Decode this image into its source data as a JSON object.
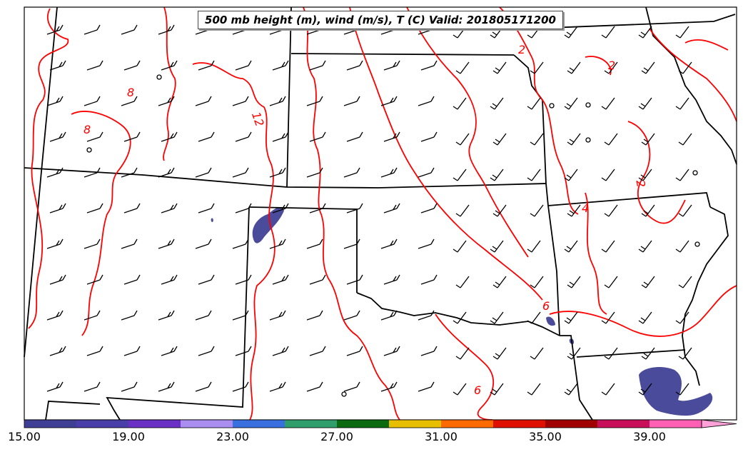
{
  "title": "500 mb height (m), wind (m/s), T (C) Valid: 201805171200",
  "colorbar": {
    "tick_labels": [
      "15.00",
      "19.00",
      "23.00",
      "27.00",
      "31.00",
      "35.00",
      "39.00"
    ],
    "colors": [
      "#3f3f96",
      "#4a3ea8",
      "#6a2fc4",
      "#a98ef0",
      "#3a6fe0",
      "#2f9e6a",
      "#0a6a10",
      "#e8bf00",
      "#ff6a00",
      "#e01000",
      "#a00000",
      "#c8105a",
      "#ff60b4",
      "#ffa0d8"
    ]
  },
  "contour_labels": [
    {
      "text": "8"
    },
    {
      "text": "8"
    },
    {
      "text": "12"
    },
    {
      "text": "2"
    },
    {
      "text": "2"
    },
    {
      "text": "2"
    },
    {
      "text": "4"
    },
    {
      "text": "6"
    },
    {
      "text": "6"
    }
  ],
  "colors": {
    "temperature_contour": "#ff0000",
    "jet_fill": "#4b4b9b",
    "boundaries": "#000000"
  }
}
